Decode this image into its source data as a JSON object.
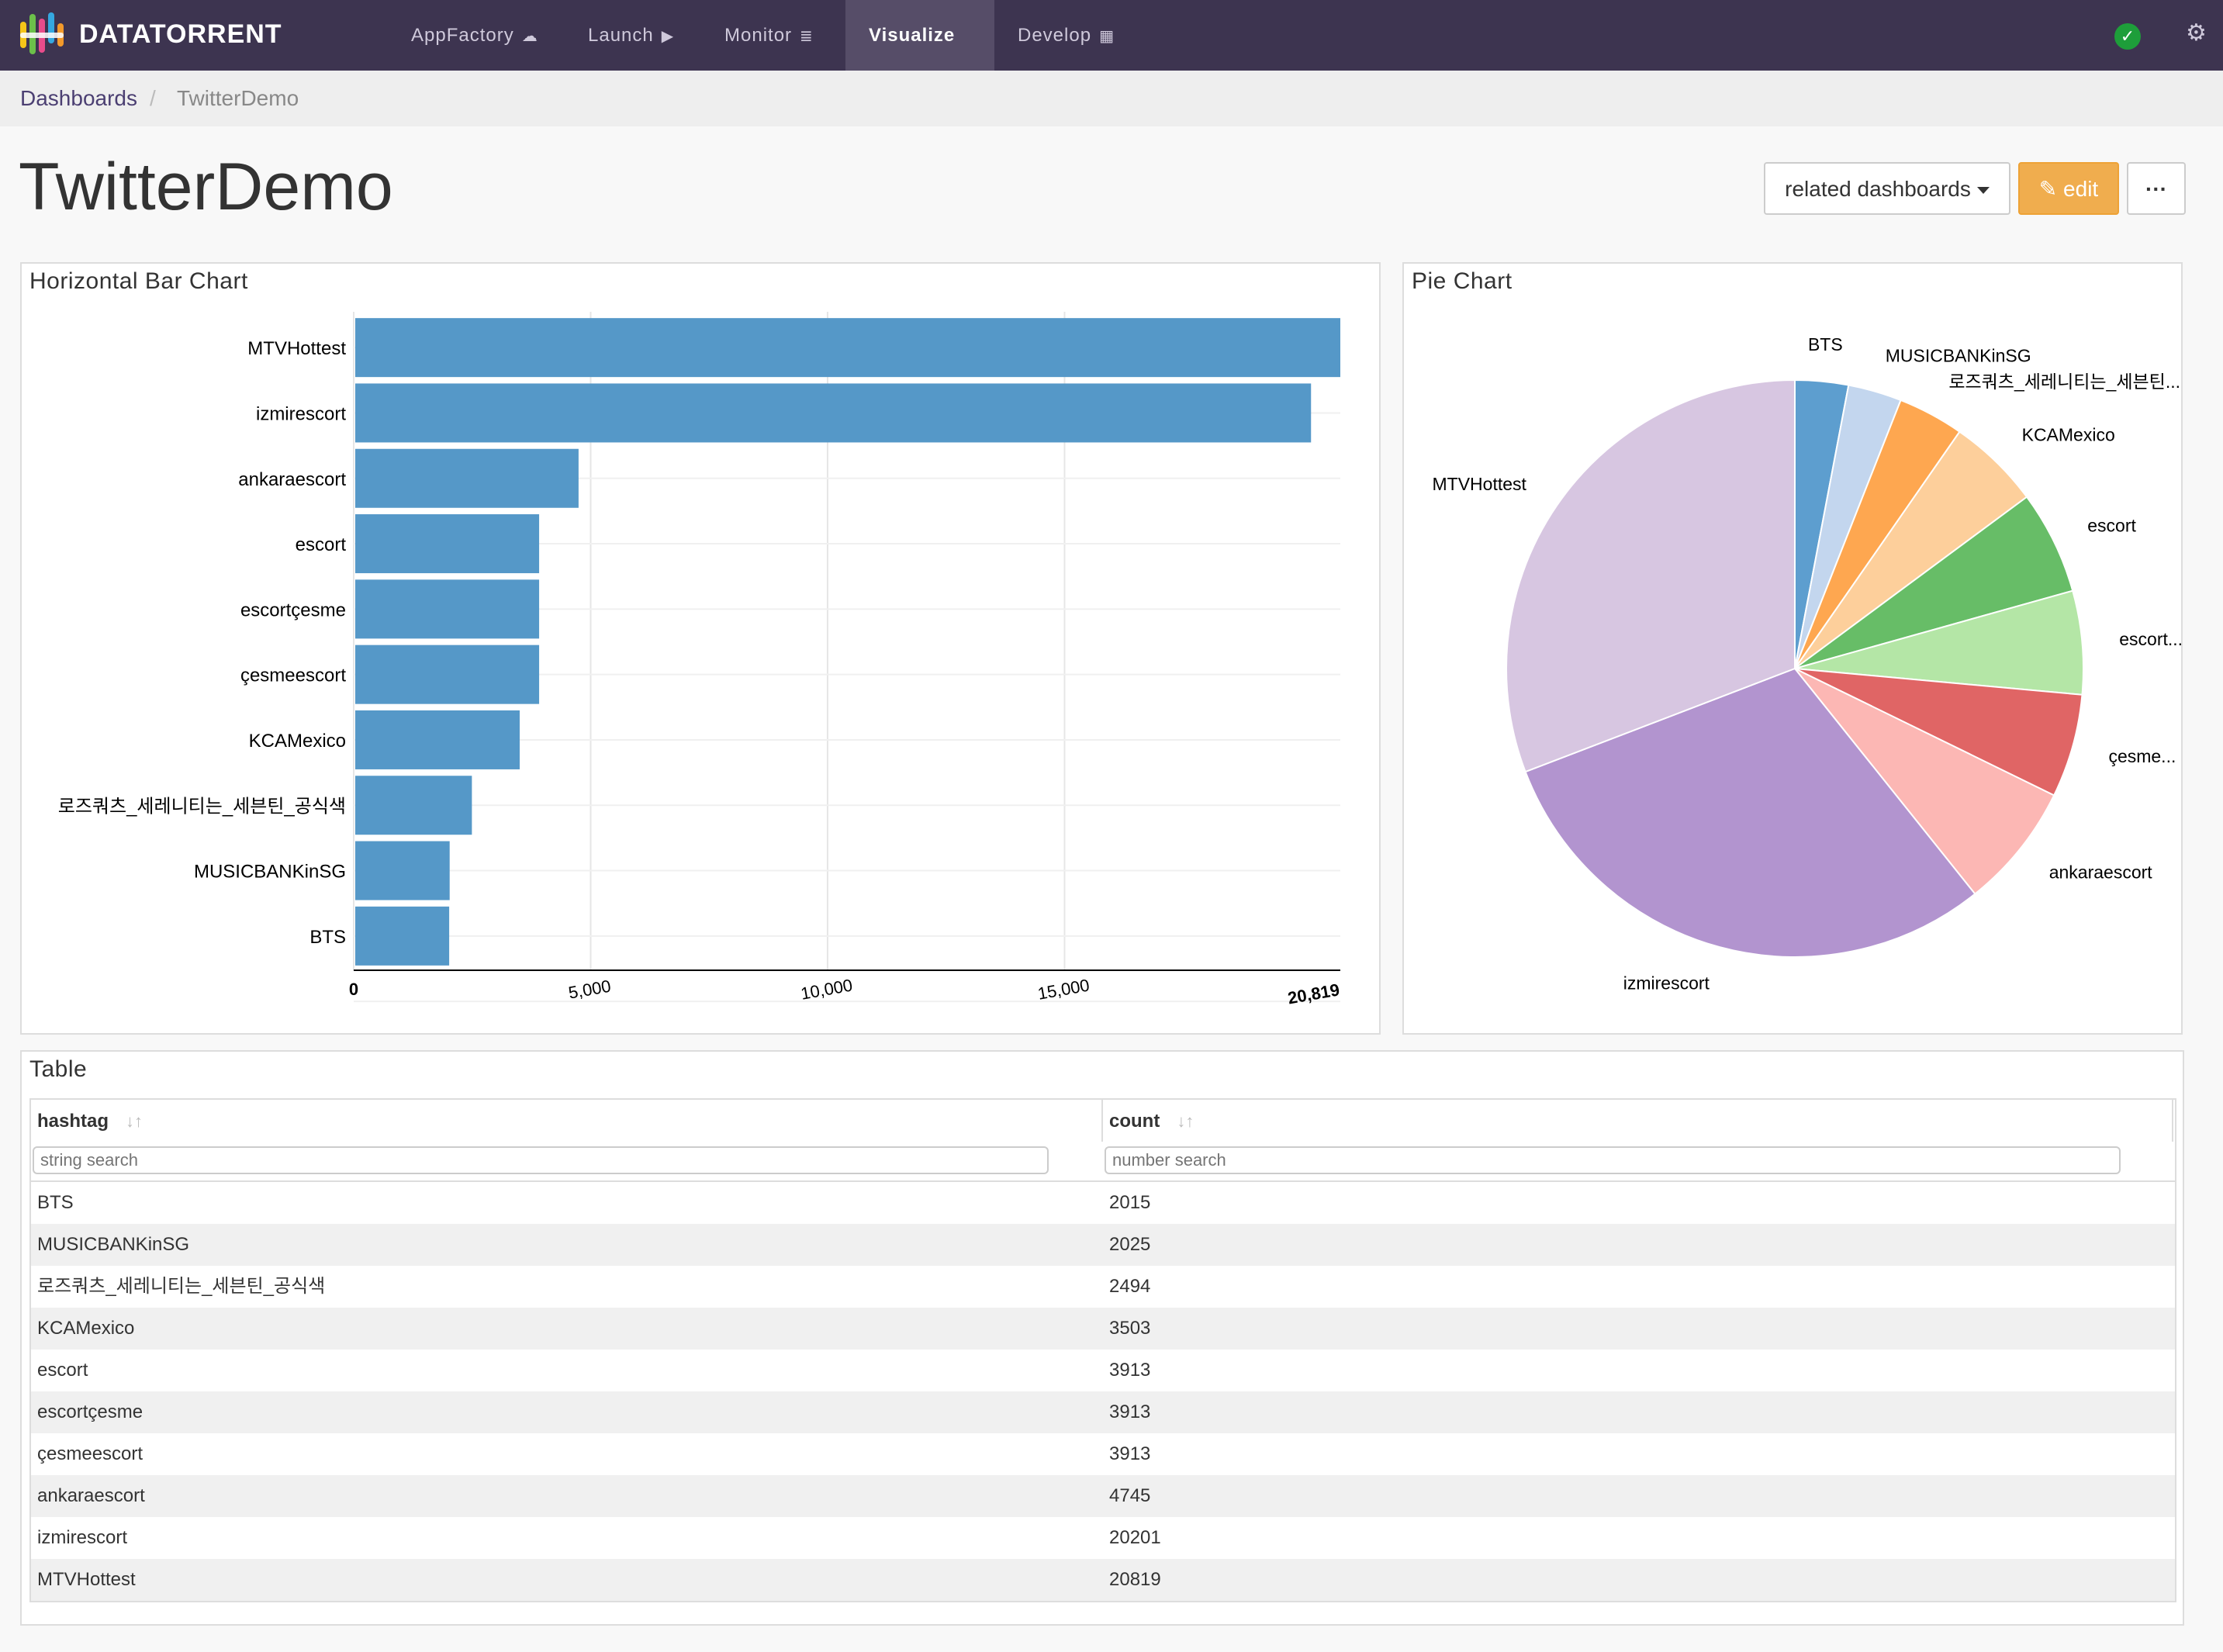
{
  "app": {
    "brand": "DATATORRENT",
    "nav": [
      {
        "label": "AppFactory",
        "icon": "cloud-icon",
        "glyph": "☁"
      },
      {
        "label": "Launch",
        "icon": "play-icon",
        "glyph": "▶"
      },
      {
        "label": "Monitor",
        "icon": "server-icon",
        "glyph": "≣"
      },
      {
        "label": "Visualize",
        "icon": "bar-chart-icon",
        "glyph": "▖▌▍",
        "active": true
      },
      {
        "label": "Develop",
        "icon": "grid-icon",
        "glyph": "▦"
      }
    ],
    "status_icon": "check-circle-icon",
    "settings_icon": "gear-icon",
    "colors": {
      "navbar": "#3d3450",
      "active_nav": "#564d68",
      "status_ok": "#1e9e3a",
      "edit_button": "#f0ad4e",
      "bar": "#5598c8"
    }
  },
  "breadcrumb": {
    "root": "Dashboards",
    "separator": "/",
    "current": "TwitterDemo"
  },
  "page": {
    "title": "TwitterDemo",
    "related_label": "related dashboards",
    "edit_label": "edit",
    "more_label": "···"
  },
  "widgets": {
    "bar_title": "Horizontal Bar Chart",
    "pie_title": "Pie Chart",
    "table_title": "Table"
  },
  "chart_data": [
    {
      "type": "bar",
      "orientation": "horizontal",
      "title": "Horizontal Bar Chart",
      "categories": [
        "MTVHottest",
        "izmirescort",
        "ankaraescort",
        "escort",
        "escortçesme",
        "çesmeescort",
        "KCAMexico",
        "로즈쿼츠_세레니티는_세븐틴_공식색",
        "MUSICBANKinSG",
        "BTS"
      ],
      "values": [
        20819,
        20201,
        4745,
        3913,
        3913,
        3913,
        3503,
        2494,
        2025,
        2015
      ],
      "xlim": [
        0,
        20819
      ],
      "x_ticks": [
        "0",
        "5,000",
        "10,000",
        "15,000",
        "20,819"
      ],
      "grid": true,
      "color": "#5598c8"
    },
    {
      "type": "pie",
      "title": "Pie Chart",
      "labels": [
        "BTS",
        "MUSICBANKinSG",
        "로즈쿼츠_세레니티는_세븐틴...",
        "KCAMexico",
        "escort",
        "escort...",
        "çesme...",
        "ankaraescort",
        "izmirescort",
        "MTVHottest"
      ],
      "values": [
        2015,
        2025,
        2494,
        3503,
        3913,
        3913,
        3913,
        4745,
        20201,
        20819
      ],
      "colors": [
        "#5d9ecf",
        "#c3d6ee",
        "#fea750",
        "#fdcf9b",
        "#67bd67",
        "#b4e6a6",
        "#e06565",
        "#fcb7b4",
        "#b294cf",
        "#d7c6e1"
      ]
    }
  ],
  "table": {
    "columns": [
      "hashtag",
      "count"
    ],
    "sort_glyph": "↓↑",
    "filters": [
      "string search",
      "number search"
    ],
    "rows": [
      [
        "BTS",
        "2015"
      ],
      [
        "MUSICBANKinSG",
        "2025"
      ],
      [
        "로즈쿼츠_세레니티는_세븐틴_공식색",
        "2494"
      ],
      [
        "KCAMexico",
        "3503"
      ],
      [
        "escort",
        "3913"
      ],
      [
        "escortçesme",
        "3913"
      ],
      [
        "çesmeescort",
        "3913"
      ],
      [
        "ankaraescort",
        "4745"
      ],
      [
        "izmirescort",
        "20201"
      ],
      [
        "MTVHottest",
        "20819"
      ]
    ]
  }
}
